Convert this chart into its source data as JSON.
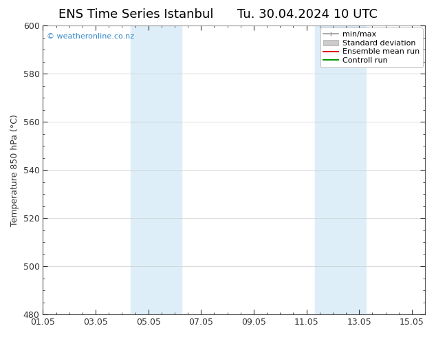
{
  "title_left": "ENS Time Series Istanbul",
  "title_right": "Tu. 30.04.2024 10 UTC",
  "ylabel": "Temperature 850 hPa (°C)",
  "ylim": [
    480,
    600
  ],
  "yticks": [
    480,
    500,
    520,
    540,
    560,
    580,
    600
  ],
  "xlim": [
    0,
    14.5
  ],
  "xtick_labels": [
    "01.05",
    "03.05",
    "05.05",
    "07.05",
    "09.05",
    "11.05",
    "13.05",
    "15.05"
  ],
  "xtick_positions": [
    0,
    2,
    4,
    6,
    8,
    10,
    12,
    14
  ],
  "shaded_bands": [
    {
      "x_start": 3.33,
      "x_end": 5.25
    },
    {
      "x_start": 10.33,
      "x_end": 12.25
    }
  ],
  "shade_color": "#ddeef8",
  "background_color": "#ffffff",
  "watermark": "© weatheronline.co.nz",
  "watermark_color": "#3388cc",
  "legend_entries": [
    {
      "label": "min/max",
      "color": "#999999",
      "type": "line_with_caps"
    },
    {
      "label": "Standard deviation",
      "color": "#cccccc",
      "type": "box"
    },
    {
      "label": "Ensemble mean run",
      "color": "#dd0000",
      "type": "line"
    },
    {
      "label": "Controll run",
      "color": "#009900",
      "type": "line"
    }
  ],
  "grid_color": "#cccccc",
  "spine_color": "#555555",
  "tick_color": "#333333",
  "title_fontsize": 13,
  "ylabel_fontsize": 9,
  "tick_fontsize": 9,
  "legend_fontsize": 8
}
